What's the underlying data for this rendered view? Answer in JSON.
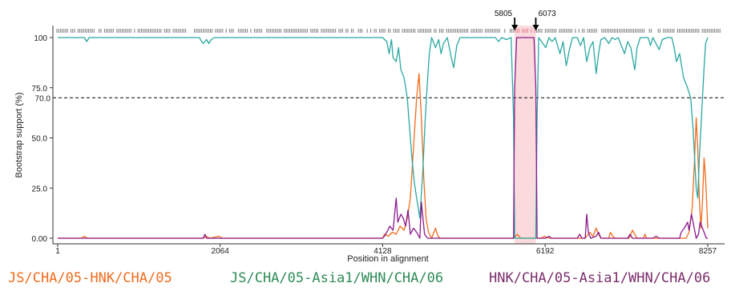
{
  "chart_data": {
    "type": "line",
    "title": "",
    "xlabel": "Position in alignment",
    "ylabel": "Bootstrap support (%)",
    "xlim": [
      1,
      8257
    ],
    "ylim": [
      0,
      100
    ],
    "x_ticks": [
      1,
      2064,
      4128,
      6192,
      8257
    ],
    "y_ticks": [
      {
        "value": 0,
        "label": "0.00"
      },
      {
        "value": 25,
        "label": "25.0"
      },
      {
        "value": 50,
        "label": "50.0"
      },
      {
        "value": 75,
        "label": "75.0"
      },
      {
        "value": 100,
        "label": "100"
      }
    ],
    "threshold": {
      "value": 70,
      "label": "70.0"
    },
    "breakpoints": [
      {
        "value": 5805,
        "label": "5805"
      },
      {
        "value": 6073,
        "label": "6073"
      }
    ],
    "highlight_region": [
      5805,
      6073
    ],
    "series": [
      {
        "name": "JS/CHA/05-HNK/CHA/05",
        "color": "#f26b1d",
        "points": [
          [
            1,
            0
          ],
          [
            300,
            0
          ],
          [
            340,
            1
          ],
          [
            380,
            0
          ],
          [
            1850,
            0
          ],
          [
            1890,
            1
          ],
          [
            1930,
            0
          ],
          [
            2050,
            1
          ],
          [
            2090,
            0
          ],
          [
            4128,
            0
          ],
          [
            4150,
            2
          ],
          [
            4200,
            1
          ],
          [
            4250,
            3
          ],
          [
            4300,
            2
          ],
          [
            4350,
            6
          ],
          [
            4400,
            4
          ],
          [
            4440,
            10
          ],
          [
            4480,
            20
          ],
          [
            4520,
            45
          ],
          [
            4560,
            70
          ],
          [
            4590,
            82
          ],
          [
            4620,
            60
          ],
          [
            4650,
            30
          ],
          [
            4680,
            10
          ],
          [
            4710,
            3
          ],
          [
            4750,
            0
          ],
          [
            4800,
            5
          ],
          [
            4830,
            1
          ],
          [
            4860,
            0
          ],
          [
            5790,
            0
          ],
          [
            5840,
            2
          ],
          [
            5880,
            0
          ],
          [
            6140,
            0
          ],
          [
            6180,
            1
          ],
          [
            6240,
            0
          ],
          [
            6700,
            0
          ],
          [
            6720,
            1
          ],
          [
            6760,
            3
          ],
          [
            6800,
            1
          ],
          [
            6840,
            5
          ],
          [
            6870,
            2
          ],
          [
            6900,
            0
          ],
          [
            7000,
            0
          ],
          [
            7020,
            3
          ],
          [
            7050,
            1
          ],
          [
            7080,
            0
          ],
          [
            7260,
            0
          ],
          [
            7300,
            4
          ],
          [
            7330,
            2
          ],
          [
            7360,
            0
          ],
          [
            7440,
            0
          ],
          [
            7460,
            2
          ],
          [
            7480,
            0
          ],
          [
            7980,
            0
          ],
          [
            8020,
            3
          ],
          [
            8060,
            15
          ],
          [
            8090,
            40
          ],
          [
            8110,
            60
          ],
          [
            8130,
            45
          ],
          [
            8150,
            20
          ],
          [
            8170,
            5
          ],
          [
            8190,
            18
          ],
          [
            8210,
            40
          ],
          [
            8230,
            30
          ],
          [
            8257,
            5
          ]
        ]
      },
      {
        "name": "JS/CHA/05-Asia1/WHN/CHA/06",
        "color": "#2aa7a1",
        "points": [
          [
            1,
            100
          ],
          [
            340,
            100
          ],
          [
            370,
            98
          ],
          [
            400,
            100
          ],
          [
            1800,
            100
          ],
          [
            1830,
            98
          ],
          [
            1850,
            97
          ],
          [
            1890,
            99
          ],
          [
            1920,
            97
          ],
          [
            1950,
            99
          ],
          [
            1990,
            100
          ],
          [
            4128,
            100
          ],
          [
            4180,
            98
          ],
          [
            4210,
            92
          ],
          [
            4240,
            99
          ],
          [
            4260,
            90
          ],
          [
            4300,
            88
          ],
          [
            4330,
            95
          ],
          [
            4360,
            84
          ],
          [
            4400,
            80
          ],
          [
            4440,
            70
          ],
          [
            4470,
            55
          ],
          [
            4500,
            40
          ],
          [
            4530,
            28
          ],
          [
            4560,
            20
          ],
          [
            4600,
            10
          ],
          [
            4640,
            35
          ],
          [
            4670,
            60
          ],
          [
            4700,
            80
          ],
          [
            4720,
            92
          ],
          [
            4750,
            100
          ],
          [
            4800,
            95
          ],
          [
            4840,
            99
          ],
          [
            4870,
            92
          ],
          [
            4900,
            97
          ],
          [
            4950,
            100
          ],
          [
            5000,
            90
          ],
          [
            5030,
            85
          ],
          [
            5070,
            96
          ],
          [
            5110,
            100
          ],
          [
            5560,
            100
          ],
          [
            5600,
            98
          ],
          [
            5640,
            100
          ],
          [
            5700,
            99
          ],
          [
            5760,
            100
          ],
          [
            5790,
            60
          ],
          [
            5805,
            0
          ],
          [
            6073,
            0
          ],
          [
            6090,
            60
          ],
          [
            6110,
            100
          ],
          [
            6200,
            95
          ],
          [
            6240,
            100
          ],
          [
            6280,
            98
          ],
          [
            6320,
            100
          ],
          [
            6380,
            92
          ],
          [
            6420,
            98
          ],
          [
            6460,
            86
          ],
          [
            6500,
            94
          ],
          [
            6540,
            100
          ],
          [
            6600,
            100
          ],
          [
            6640,
            96
          ],
          [
            6680,
            100
          ],
          [
            6720,
            88
          ],
          [
            6760,
            95
          ],
          [
            6800,
            98
          ],
          [
            6840,
            82
          ],
          [
            6870,
            92
          ],
          [
            6900,
            99
          ],
          [
            6950,
            100
          ],
          [
            7000,
            97
          ],
          [
            7040,
            100
          ],
          [
            7080,
            99
          ],
          [
            7120,
            100
          ],
          [
            7160,
            96
          ],
          [
            7200,
            92
          ],
          [
            7240,
            98
          ],
          [
            7280,
            95
          ],
          [
            7330,
            84
          ],
          [
            7360,
            95
          ],
          [
            7400,
            100
          ],
          [
            7500,
            100
          ],
          [
            7530,
            96
          ],
          [
            7560,
            100
          ],
          [
            7640,
            94
          ],
          [
            7680,
            99
          ],
          [
            7740,
            100
          ],
          [
            7800,
            100
          ],
          [
            7830,
            95
          ],
          [
            7860,
            88
          ],
          [
            7900,
            92
          ],
          [
            7950,
            80
          ],
          [
            8000,
            75
          ],
          [
            8040,
            70
          ],
          [
            8070,
            55
          ],
          [
            8090,
            40
          ],
          [
            8110,
            25
          ],
          [
            8130,
            20
          ],
          [
            8150,
            40
          ],
          [
            8170,
            55
          ],
          [
            8190,
            70
          ],
          [
            8210,
            85
          ],
          [
            8230,
            97
          ],
          [
            8257,
            100
          ]
        ]
      },
      {
        "name": "HNK/CHA/05-Asia1/WHN/CHA/06",
        "color": "#8b1a8b",
        "points": [
          [
            1,
            0
          ],
          [
            1850,
            0
          ],
          [
            1870,
            2
          ],
          [
            1890,
            0
          ],
          [
            4128,
            0
          ],
          [
            4150,
            1
          ],
          [
            4180,
            3
          ],
          [
            4220,
            6
          ],
          [
            4260,
            4
          ],
          [
            4300,
            20
          ],
          [
            4320,
            8
          ],
          [
            4360,
            12
          ],
          [
            4390,
            10
          ],
          [
            4420,
            6
          ],
          [
            4450,
            14
          ],
          [
            4480,
            2
          ],
          [
            4520,
            5
          ],
          [
            4560,
            3
          ],
          [
            4600,
            0
          ],
          [
            4620,
            18
          ],
          [
            4640,
            10
          ],
          [
            4660,
            2
          ],
          [
            4700,
            0
          ],
          [
            5790,
            0
          ],
          [
            5805,
            75
          ],
          [
            5830,
            100
          ],
          [
            6050,
            100
          ],
          [
            6073,
            75
          ],
          [
            6090,
            0
          ],
          [
            6200,
            0
          ],
          [
            6240,
            1
          ],
          [
            6270,
            0
          ],
          [
            6600,
            0
          ],
          [
            6630,
            2
          ],
          [
            6660,
            0
          ],
          [
            6700,
            0
          ],
          [
            6720,
            12
          ],
          [
            6740,
            3
          ],
          [
            6770,
            0
          ],
          [
            6840,
            1
          ],
          [
            6870,
            3
          ],
          [
            6900,
            0
          ],
          [
            7240,
            0
          ],
          [
            7270,
            2
          ],
          [
            7300,
            0
          ],
          [
            7560,
            0
          ],
          [
            7600,
            1
          ],
          [
            7640,
            0
          ],
          [
            7900,
            0
          ],
          [
            7920,
            3
          ],
          [
            7960,
            5
          ],
          [
            8000,
            8
          ],
          [
            8020,
            4
          ],
          [
            8050,
            12
          ],
          [
            8080,
            6
          ],
          [
            8110,
            0
          ],
          [
            8140,
            2
          ],
          [
            8160,
            8
          ],
          [
            8190,
            5
          ],
          [
            8220,
            2
          ],
          [
            8240,
            0
          ],
          [
            8257,
            0
          ]
        ]
      }
    ]
  }
}
